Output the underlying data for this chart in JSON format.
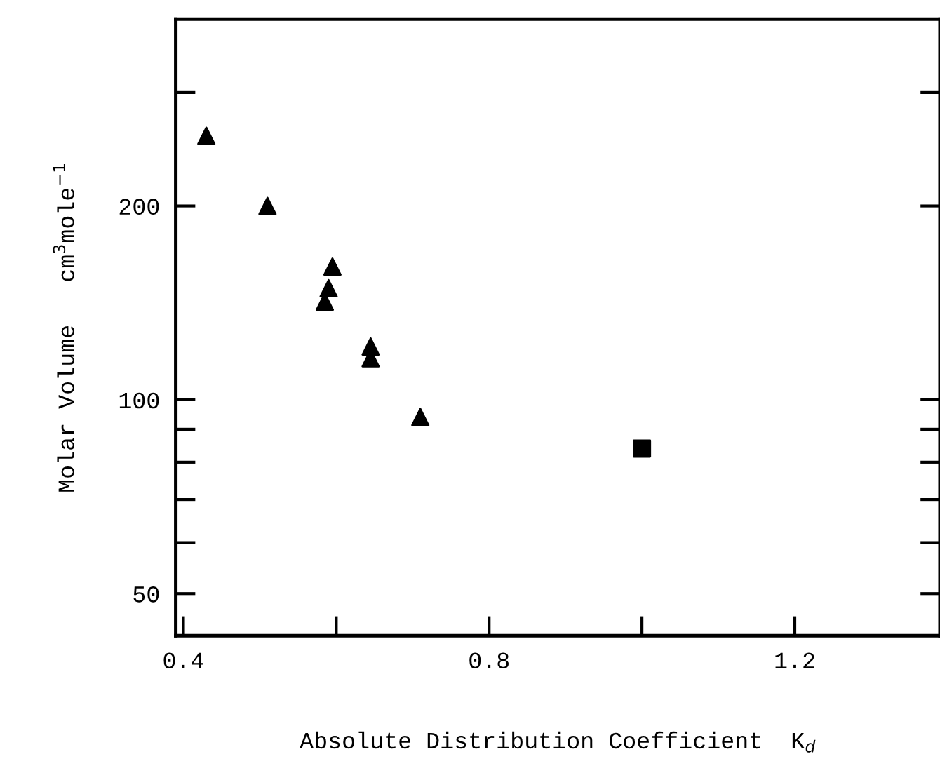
{
  "chart_data": {
    "type": "scatter",
    "xlabel": "Absolute Distribution Coefficient  K$_{d}$",
    "ylabel": "Molar Volume   cm$^{3}$mole$^{−1}$",
    "log": "y",
    "series": [
      {
        "color": "#000000",
        "marker": "triangle",
        "x": [
          0.43,
          0.51,
          0.595,
          0.59,
          0.585,
          0.645,
          0.645,
          0.71
        ],
        "values": [
          257,
          200,
          161,
          149,
          142,
          121,
          116,
          94
        ]
      },
      {
        "color": "#000000",
        "marker": "square",
        "x": [
          1.0
        ],
        "values": [
          84
        ]
      }
    ],
    "xlim": [
      0.39,
      1.39
    ],
    "xticks": [
      0.4,
      {
        "value": 0.6,
        "label": null
      },
      0.8,
      {
        "value": 1.0,
        "label": null
      },
      1.2
    ],
    "ylim": [
      43,
      390
    ],
    "yticks": [
      50,
      {
        "value": 60,
        "label": null
      },
      {
        "value": 70,
        "label": null
      },
      {
        "value": 80,
        "label": null
      },
      {
        "value": 90,
        "label": null
      },
      100,
      200,
      {
        "value": 300,
        "label": null
      }
    ],
    "grid": false,
    "legend": false
  }
}
